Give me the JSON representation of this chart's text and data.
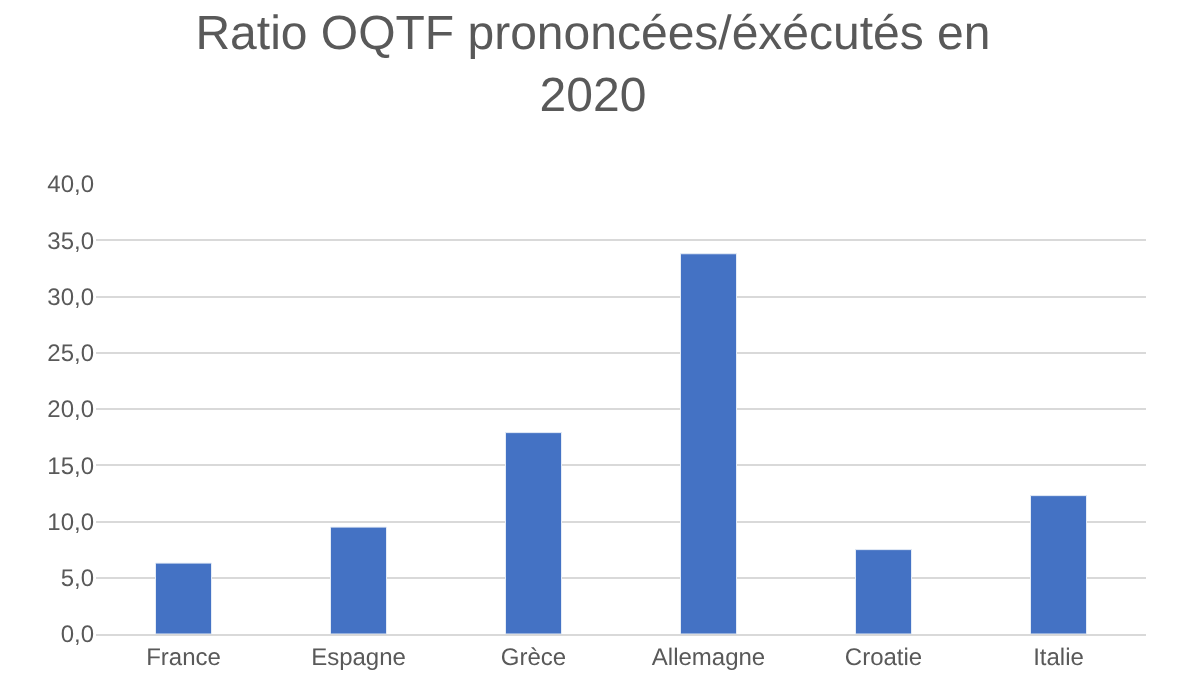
{
  "chart_data": {
    "type": "bar",
    "title": "Ratio OQTF prononcées/éxécutés en 2020",
    "categories": [
      "France",
      "Espagne",
      "Grèce",
      "Allemagne",
      "Croatie",
      "Italie"
    ],
    "values": [
      6.3,
      9.5,
      17.9,
      33.8,
      7.5,
      12.3
    ],
    "color": "#4472c4",
    "ylim": [
      0,
      40
    ],
    "yticks": [
      {
        "value": 0,
        "label": "0,0"
      },
      {
        "value": 5,
        "label": "5,0"
      },
      {
        "value": 10,
        "label": "10,0"
      },
      {
        "value": 15,
        "label": "15,0"
      },
      {
        "value": 20,
        "label": "20,0"
      },
      {
        "value": 25,
        "label": "25,0"
      },
      {
        "value": 30,
        "label": "30,0"
      },
      {
        "value": 35,
        "label": "35,0"
      },
      {
        "value": 40,
        "label": "40,0"
      }
    ],
    "grid": "y"
  }
}
